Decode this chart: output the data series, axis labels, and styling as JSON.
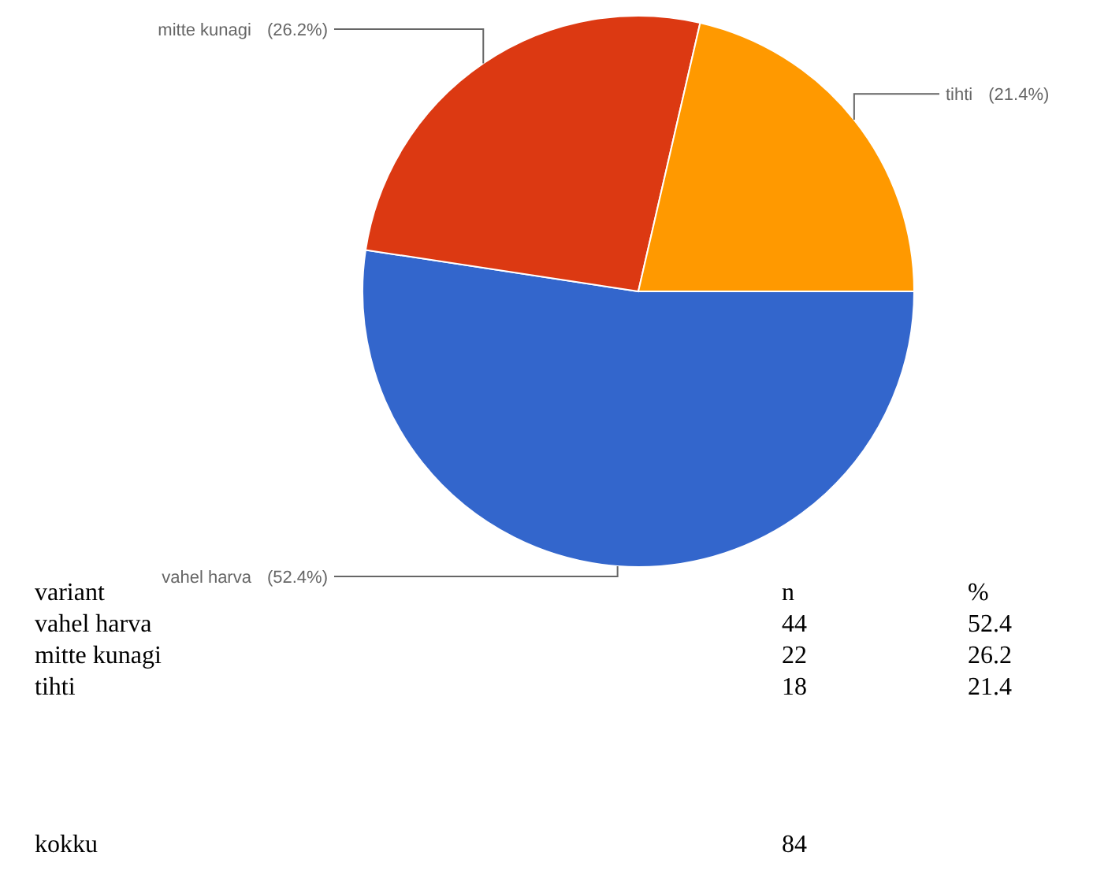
{
  "chart_data": [
    {
      "type": "pie",
      "categories": [
        "vahel harva",
        "mitte kunagi",
        "tihti"
      ],
      "values": [
        52.4,
        26.2,
        21.4
      ],
      "colors": [
        "#3366cc",
        "#dc3912",
        "#ff9900"
      ],
      "value_labels": [
        "(52.4%)",
        "(26.2%)",
        "(21.4%)"
      ]
    },
    {
      "type": "other",
      "xlabel": "variant",
      "categories": [
        "vahel harva",
        "mitte kunagi",
        "tihti"
      ],
      "series": [
        {
          "name": "n",
          "values": [
            44,
            22,
            18
          ]
        },
        {
          "name": "%",
          "values": [
            52.4,
            26.2,
            21.4
          ]
        }
      ],
      "annotations": [
        "kokku"
      ],
      "totals": [
        "84"
      ],
      "data_labels": true
    }
  ]
}
